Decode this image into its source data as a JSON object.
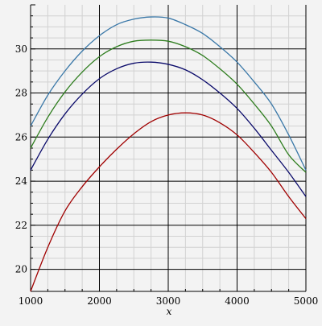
{
  "chart_data": {
    "type": "line",
    "title": "",
    "xlabel": "x",
    "ylabel": "",
    "xlim": [
      1000,
      5000
    ],
    "ylim": [
      19,
      32
    ],
    "grid": true,
    "minor_grid": true,
    "x_ticks": [
      "1000",
      "2000",
      "3000",
      "4000",
      "5000"
    ],
    "y_ticks": [
      "20",
      "22",
      "24",
      "26",
      "28",
      "30"
    ],
    "x": [
      1000,
      1250,
      1500,
      1750,
      2000,
      2250,
      2500,
      2750,
      3000,
      3250,
      3500,
      3750,
      4000,
      4250,
      4500,
      4750,
      5000
    ],
    "series": [
      {
        "color": "#3a78a8",
        "values": [
          26.5,
          27.9,
          29.0,
          29.9,
          30.6,
          31.1,
          31.35,
          31.45,
          31.4,
          31.1,
          30.7,
          30.1,
          29.4,
          28.5,
          27.5,
          26.1,
          24.5
        ]
      },
      {
        "color": "#2e7d1e",
        "values": [
          25.5,
          26.9,
          28.05,
          28.95,
          29.65,
          30.1,
          30.35,
          30.4,
          30.35,
          30.1,
          29.7,
          29.1,
          28.4,
          27.5,
          26.5,
          25.2,
          24.4
        ]
      },
      {
        "color": "#0a0a6a",
        "values": [
          24.5,
          25.9,
          27.05,
          27.95,
          28.65,
          29.1,
          29.35,
          29.4,
          29.3,
          29.05,
          28.6,
          28.0,
          27.3,
          26.4,
          25.4,
          24.4,
          23.3
        ]
      },
      {
        "color": "#a00000",
        "values": [
          19.0,
          21.0,
          22.65,
          23.75,
          24.65,
          25.45,
          26.15,
          26.7,
          27.0,
          27.1,
          27.0,
          26.65,
          26.1,
          25.3,
          24.4,
          23.3,
          22.3
        ]
      }
    ]
  }
}
